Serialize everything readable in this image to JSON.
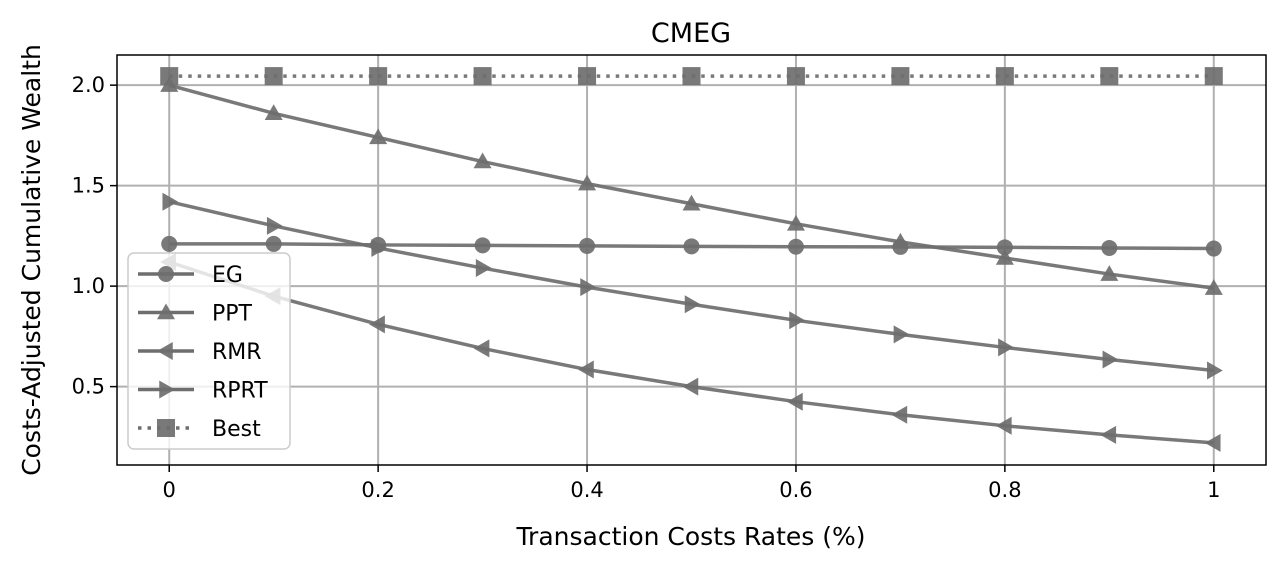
{
  "chart_data": {
    "type": "line",
    "title": "CMEG",
    "xlabel": "Transaction Costs Rates (%)",
    "ylabel": "Costs-Adjusted Cumulative Wealth",
    "x": [
      0,
      0.1,
      0.2,
      0.3,
      0.4,
      0.5,
      0.6,
      0.7,
      0.8,
      0.9,
      1.0
    ],
    "xlim": [
      -0.05,
      1.05
    ],
    "ylim": [
      0.11,
      2.15
    ],
    "xticks": [
      0,
      0.2,
      0.4,
      0.6,
      0.8,
      1.0
    ],
    "xtick_labels": [
      "0",
      "0.2",
      "0.4",
      "0.6",
      "0.8",
      "1"
    ],
    "yticks": [
      0.5,
      1.0,
      1.5,
      2.0
    ],
    "ytick_labels": [
      "0.5",
      "1.0",
      "1.5",
      "2.0"
    ],
    "grid": true,
    "legend_position": "center-left",
    "line_color": "#6e6e6e",
    "series": [
      {
        "name": "EG",
        "marker": "circle",
        "style": "solid",
        "values": [
          1.21,
          1.21,
          1.205,
          1.203,
          1.2,
          1.198,
          1.196,
          1.195,
          1.193,
          1.19,
          1.187
        ]
      },
      {
        "name": "PPT",
        "marker": "triangle-up",
        "style": "solid",
        "values": [
          2.0,
          1.86,
          1.74,
          1.62,
          1.51,
          1.41,
          1.31,
          1.22,
          1.14,
          1.06,
          0.99
        ]
      },
      {
        "name": "RMR",
        "marker": "triangle-left",
        "style": "solid",
        "values": [
          1.12,
          0.95,
          0.81,
          0.69,
          0.585,
          0.5,
          0.425,
          0.36,
          0.305,
          0.26,
          0.22
        ]
      },
      {
        "name": "RPRT",
        "marker": "triangle-right",
        "style": "solid",
        "values": [
          1.42,
          1.3,
          1.19,
          1.09,
          0.995,
          0.91,
          0.83,
          0.76,
          0.695,
          0.635,
          0.58
        ]
      },
      {
        "name": "Best",
        "marker": "square",
        "style": "dotted",
        "values": [
          2.045,
          2.045,
          2.045,
          2.045,
          2.045,
          2.045,
          2.045,
          2.045,
          2.045,
          2.045,
          2.045
        ]
      }
    ]
  }
}
